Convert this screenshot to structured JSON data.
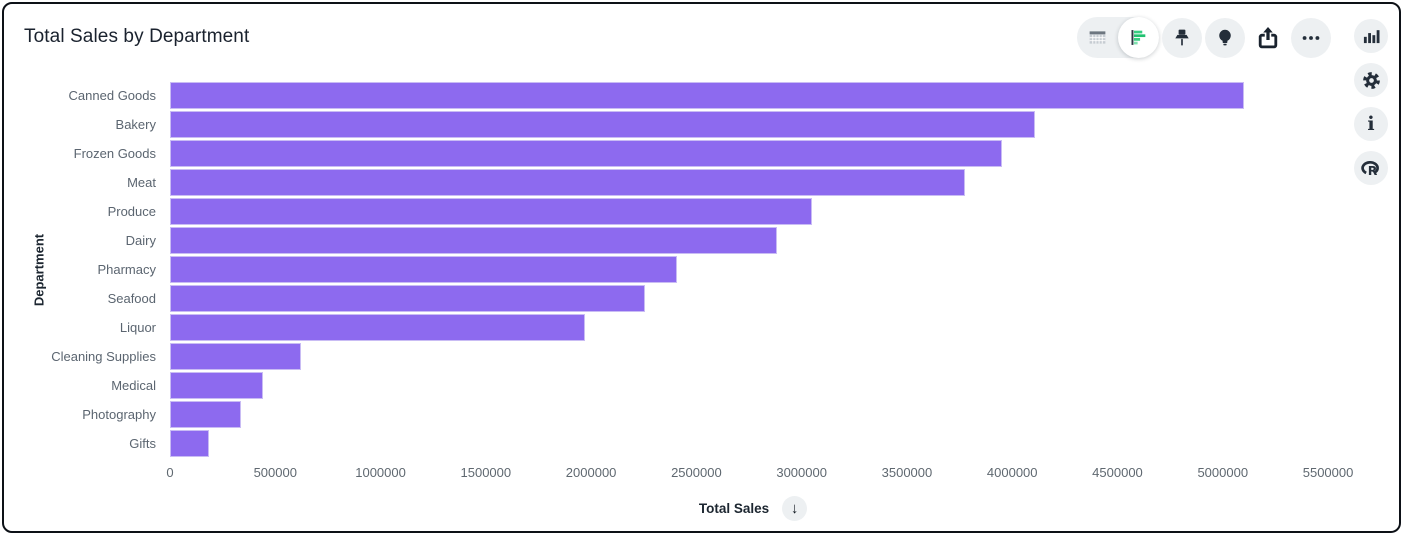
{
  "header": {
    "title": "Total Sales by Department"
  },
  "toolbar": {
    "view_toggle": {
      "options": [
        "table-view",
        "chart-view"
      ],
      "selected": "chart-view",
      "chart_icon_color": "#25c578"
    },
    "buttons": [
      {
        "icon": "pin-icon"
      },
      {
        "icon": "lightbulb-icon"
      },
      {
        "icon": "share-icon"
      },
      {
        "icon": "ellipsis-icon"
      }
    ]
  },
  "right_rail": {
    "buttons": [
      {
        "icon": "column-chart-icon"
      },
      {
        "icon": "gear-icon"
      },
      {
        "icon": "info-icon",
        "glyph": "i"
      },
      {
        "icon": "r-logo-icon",
        "glyph": "R"
      }
    ],
    "button_bg": "#edf0f2",
    "icon_color": "#242e3a"
  },
  "chart_data": {
    "type": "bar",
    "orientation": "horizontal",
    "title": "Total Sales by Department",
    "xlabel": "Total Sales",
    "ylabel": "Department",
    "categories": [
      "Canned Goods",
      "Bakery",
      "Frozen Goods",
      "Meat",
      "Produce",
      "Dairy",
      "Pharmacy",
      "Seafood",
      "Liquor",
      "Cleaning Supplies",
      "Medical",
      "Photography",
      "Gifts"
    ],
    "values": [
      5099000,
      4108000,
      3953000,
      3778000,
      3047000,
      2882000,
      2406000,
      2255000,
      1972000,
      623000,
      443000,
      335000,
      184000
    ],
    "xlim": [
      0,
      5537736
    ],
    "xticks": [
      0,
      500000,
      1000000,
      1500000,
      2000000,
      2500000,
      3000000,
      3500000,
      4000000,
      4500000,
      5000000,
      5500000
    ],
    "xtick_labels": [
      "0",
      "500000",
      "1000000",
      "1500000",
      "2000000",
      "2500000",
      "3000000",
      "3500000",
      "4000000",
      "4500000",
      "5000000",
      "5500000"
    ],
    "bar_color": "#8d6aef",
    "grid": false,
    "legend": false,
    "sort": "descending"
  },
  "x_axis": {
    "label": "Total Sales",
    "sort_button_glyph": "↓"
  }
}
